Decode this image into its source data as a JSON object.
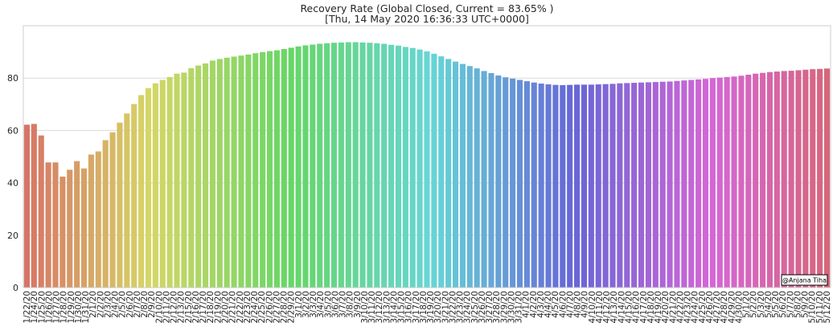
{
  "chart_data": {
    "type": "bar",
    "title_line1": "Recovery Rate (Global Closed, Current = 83.65% )",
    "title_line2": "[Thu, 14 May 2020 16:36:33 UTC+0000]",
    "xlabel": "",
    "ylabel": "",
    "ylim": [
      0,
      100
    ],
    "yticks": [
      0,
      20,
      40,
      60,
      80
    ],
    "grid": "horizontal",
    "annotation": "@Anjana Tiha",
    "categories": [
      "1/22/20",
      "1/23/20",
      "1/24/20",
      "1/25/20",
      "1/26/20",
      "1/27/20",
      "1/28/20",
      "1/29/20",
      "1/30/20",
      "1/31/20",
      "2/1/20",
      "2/2/20",
      "2/3/20",
      "2/4/20",
      "2/5/20",
      "2/6/20",
      "2/7/20",
      "2/8/20",
      "2/9/20",
      "2/10/20",
      "2/11/20",
      "2/12/20",
      "2/13/20",
      "2/14/20",
      "2/15/20",
      "2/16/20",
      "2/17/20",
      "2/18/20",
      "2/19/20",
      "2/20/20",
      "2/21/20",
      "2/22/20",
      "2/23/20",
      "2/24/20",
      "2/25/20",
      "2/26/20",
      "2/27/20",
      "2/28/20",
      "2/29/20",
      "3/1/20",
      "3/2/20",
      "3/3/20",
      "3/4/20",
      "3/5/20",
      "3/6/20",
      "3/7/20",
      "3/8/20",
      "3/9/20",
      "3/10/20",
      "3/11/20",
      "3/12/20",
      "3/13/20",
      "3/14/20",
      "3/15/20",
      "3/16/20",
      "3/17/20",
      "3/18/20",
      "3/19/20",
      "3/20/20",
      "3/21/20",
      "3/22/20",
      "3/23/20",
      "3/24/20",
      "3/25/20",
      "3/26/20",
      "3/27/20",
      "3/28/20",
      "3/29/20",
      "3/30/20",
      "3/31/20",
      "4/1/20",
      "4/2/20",
      "4/3/20",
      "4/4/20",
      "4/5/20",
      "4/6/20",
      "4/7/20",
      "4/8/20",
      "4/9/20",
      "4/10/20",
      "4/11/20",
      "4/12/20",
      "4/13/20",
      "4/14/20",
      "4/15/20",
      "4/16/20",
      "4/17/20",
      "4/18/20",
      "4/19/20",
      "4/20/20",
      "4/21/20",
      "4/22/20",
      "4/23/20",
      "4/24/20",
      "4/25/20",
      "4/26/20",
      "4/27/20",
      "4/28/20",
      "4/29/20",
      "4/30/20",
      "5/1/20",
      "5/2/20",
      "5/3/20",
      "5/4/20",
      "5/5/20",
      "5/6/20",
      "5/7/20",
      "5/8/20",
      "5/9/20",
      "5/10/20",
      "5/11/20",
      "5/12/20",
      "5/13/20"
    ],
    "xtick_labels": [
      "1/22/20",
      "1/24/20",
      "1/25/20",
      "1/26/20",
      "1/27/20",
      "1/28/20",
      "1/29/20",
      "1/30/20",
      "1/31/20",
      "2/1/20",
      "2/2/20",
      "2/3/20",
      "2/4/20",
      "2/5/20",
      "2/6/20",
      "2/7/20",
      "2/8/20",
      "2/9/20",
      "2/10/20",
      "2/11/20",
      "2/12/20",
      "2/13/20",
      "2/15/20",
      "2/16/20",
      "2/17/20",
      "2/18/20",
      "2/19/20",
      "2/20/20",
      "2/21/20",
      "2/22/20",
      "2/23/20",
      "2/24/20",
      "2/25/20",
      "2/26/20",
      "2/27/20",
      "2/28/20",
      "2/29/20",
      "3/1/20",
      "3/2/20",
      "3/3/20",
      "3/4/20",
      "3/5/20",
      "3/6/20",
      "3/7/20",
      "3/8/20",
      "3/9/20",
      "3/10/20",
      "3/11/20",
      "3/12/20",
      "3/13/20",
      "3/14/20",
      "3/15/20",
      "3/16/20",
      "3/17/20",
      "3/18/20",
      "3/19/20",
      "3/20/20",
      "3/21/20",
      "3/22/20",
      "3/23/20",
      "3/24/20",
      "3/25/20",
      "3/26/20",
      "3/27/20",
      "3/28/20",
      "3/29/20",
      "3/30/20",
      "3/31/20",
      "4/1/20",
      "4/2/20",
      "4/3/20",
      "4/4/20",
      "4/5/20",
      "4/6/20",
      "4/7/20",
      "4/8/20",
      "4/9/20",
      "4/10/20",
      "4/11/20",
      "4/12/20",
      "4/13/20",
      "4/14/20",
      "4/15/20",
      "4/16/20",
      "4/17/20",
      "4/18/20",
      "4/19/20",
      "4/20/20",
      "4/21/20",
      "4/22/20",
      "4/23/20",
      "4/24/20",
      "4/25/20",
      "4/26/20",
      "4/27/20",
      "4/28/20",
      "4/29/20",
      "4/30/20",
      "5/1/20",
      "5/2/20",
      "5/3/20",
      "5/4/20",
      "5/5/20",
      "5/6/20",
      "5/7/20",
      "5/8/20",
      "5/9/20",
      "5/10/20",
      "5/11/20",
      "5/12/20"
    ],
    "values": [
      62.2,
      62.5,
      58.1,
      47.8,
      47.8,
      42.4,
      45.0,
      48.3,
      45.5,
      50.8,
      52.0,
      56.3,
      59.3,
      63.0,
      66.5,
      70.1,
      73.5,
      76.2,
      78.0,
      79.3,
      80.4,
      81.7,
      82.1,
      83.8,
      84.8,
      85.6,
      86.7,
      87.3,
      87.8,
      88.2,
      88.6,
      89.0,
      89.5,
      89.9,
      90.3,
      90.6,
      91.1,
      91.6,
      92.1,
      92.5,
      92.8,
      93.1,
      93.3,
      93.5,
      93.6,
      93.7,
      93.7,
      93.6,
      93.5,
      93.3,
      93.1,
      92.7,
      92.4,
      91.9,
      91.5,
      90.9,
      90.2,
      89.3,
      88.3,
      87.3,
      86.3,
      85.4,
      84.6,
      83.7,
      82.7,
      81.9,
      81.0,
      80.3,
      79.8,
      79.3,
      78.8,
      78.3,
      77.9,
      77.6,
      77.4,
      77.3,
      77.4,
      77.5,
      77.5,
      77.5,
      77.6,
      77.7,
      77.8,
      78.0,
      78.1,
      78.2,
      78.3,
      78.4,
      78.5,
      78.6,
      78.7,
      78.9,
      79.1,
      79.3,
      79.5,
      79.7,
      80.0,
      80.2,
      80.4,
      80.6,
      80.9,
      81.3,
      81.7,
      82.0,
      82.3,
      82.5,
      82.7,
      82.8,
      83.0,
      83.2,
      83.4,
      83.5,
      83.65
    ]
  }
}
